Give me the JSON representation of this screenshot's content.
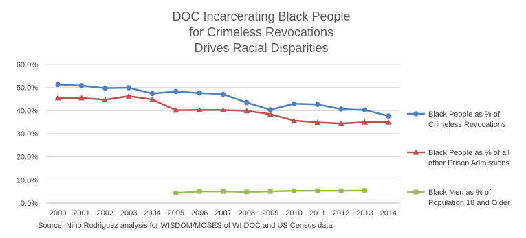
{
  "chart_data": {
    "type": "line",
    "title_lines": [
      "DOC Incarcerating Black People",
      "for Crimeless Revocations",
      "Drives Racial Disparities"
    ],
    "source": "Source: Nino Rodriguez analysis for WISDOM/MOSES of WI DOC and US Census data",
    "x": [
      "2000",
      "2001",
      "2002",
      "2003",
      "2004",
      "2005",
      "2006",
      "2007",
      "2008",
      "2009",
      "2010",
      "2011",
      "2012",
      "2013",
      "2014"
    ],
    "y_ticks": [
      "0.0%",
      "10.0%",
      "20.0%",
      "30.0%",
      "40.0%",
      "50.0%",
      "60.0%"
    ],
    "ylim": [
      0,
      60
    ],
    "grid": true,
    "legend_position": "right",
    "series": [
      {
        "name_lines": [
          "Black People as % of",
          "Crimeless Revocations"
        ],
        "color": "#4f81bd",
        "marker": "circle",
        "values": [
          51.3,
          50.8,
          49.7,
          49.9,
          47.4,
          48.3,
          47.6,
          47.1,
          43.5,
          40.4,
          43.0,
          42.7,
          40.7,
          40.3,
          37.7
        ]
      },
      {
        "name_lines": [
          "Black People as % of all",
          "other Prison Admissions"
        ],
        "color": "#c0504d",
        "marker": "triangle",
        "values": [
          45.5,
          45.5,
          44.7,
          46.3,
          44.8,
          40.2,
          40.3,
          40.3,
          39.9,
          38.5,
          35.7,
          34.9,
          34.4,
          35.0,
          35.0
        ]
      },
      {
        "name_lines": [
          "Black Men as % of",
          "Population 18 and Older"
        ],
        "color": "#9bbb59",
        "marker": "square",
        "values": [
          null,
          null,
          null,
          null,
          null,
          4.3,
          5.0,
          5.0,
          4.8,
          5.0,
          5.3,
          5.3,
          5.3,
          5.4,
          null
        ]
      }
    ]
  }
}
